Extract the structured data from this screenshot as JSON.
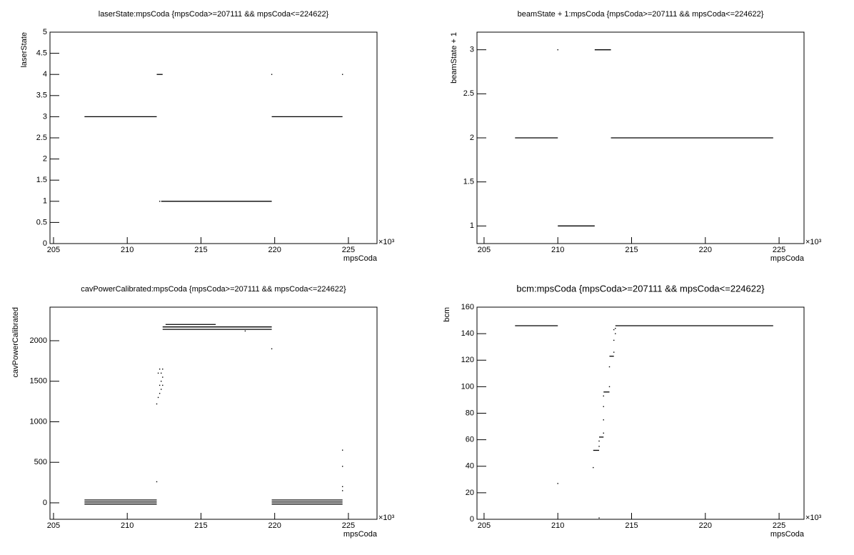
{
  "chart_data": [
    {
      "type": "scatter",
      "title": "laserState:mpsCoda {mpsCoda>=207111 && mpsCoda<=224622}",
      "x_label": "mpsCoda",
      "y_label": "laserState",
      "x_exponent": "×10³",
      "xlim": [
        204.76,
        226.94
      ],
      "xticks": [
        205,
        210,
        215,
        220,
        225
      ],
      "ylim": [
        0,
        5
      ],
      "yticks": [
        0,
        0.5,
        1,
        1.5,
        2,
        2.5,
        3,
        3.5,
        4,
        4.5,
        5
      ],
      "runs": [
        {
          "x": [
            207.1,
            212.0
          ],
          "y": 3
        },
        {
          "x": [
            212.0,
            212.4
          ],
          "y": 4
        },
        {
          "x": [
            212.3,
            219.8
          ],
          "y": 1
        },
        {
          "x": [
            219.8,
            224.6
          ],
          "y": 3
        }
      ],
      "points": {
        "x": [
          212.2,
          219.8,
          224.6
        ],
        "y": [
          1,
          4,
          4
        ]
      }
    },
    {
      "type": "scatter",
      "title": "beamState + 1:mpsCoda {mpsCoda>=207111 && mpsCoda<=224622}",
      "x_label": "mpsCoda",
      "y_label": "beamState + 1",
      "x_exponent": "×10³",
      "xlim": [
        204.52,
        226.69
      ],
      "xticks": [
        205,
        210,
        215,
        220,
        225
      ],
      "ylim": [
        0.8,
        3.2
      ],
      "yticks": [
        1,
        1.5,
        2,
        2.5,
        3
      ],
      "runs": [
        {
          "x": [
            207.1,
            210.0
          ],
          "y": 2
        },
        {
          "x": [
            210.0,
            212.5
          ],
          "y": 1
        },
        {
          "x": [
            212.5,
            213.6
          ],
          "y": 3
        },
        {
          "x": [
            213.6,
            224.6
          ],
          "y": 2
        }
      ],
      "points": {
        "x": [
          210.0
        ],
        "y": [
          3
        ]
      }
    },
    {
      "type": "scatter",
      "title": "cavPowerCalibrated:mpsCoda {mpsCoda>=207111 && mpsCoda<=224622}",
      "x_label": "mpsCoda",
      "y_label": "cavPowerCalibrated",
      "x_exponent": "×10³",
      "xlim": [
        204.76,
        226.94
      ],
      "xticks": [
        205,
        210,
        215,
        220,
        225
      ],
      "ylim": [
        -203,
        2414
      ],
      "yticks": [
        0,
        500,
        1000,
        1500,
        2000
      ],
      "runs": [
        {
          "x": [
            207.1,
            212.0
          ],
          "y": 35
        },
        {
          "x": [
            207.1,
            212.0
          ],
          "y": 10
        },
        {
          "x": [
            207.1,
            212.0
          ],
          "y": -15
        },
        {
          "x": [
            212.4,
            219.8
          ],
          "y": 2140
        },
        {
          "x": [
            212.4,
            219.8
          ],
          "y": 2170
        },
        {
          "x": [
            212.6,
            216.0
          ],
          "y": 2200
        },
        {
          "x": [
            219.8,
            224.6
          ],
          "y": 35
        },
        {
          "x": [
            219.8,
            224.6
          ],
          "y": 10
        },
        {
          "x": [
            219.8,
            224.6
          ],
          "y": -15
        }
      ],
      "points": {
        "x": [
          212.0,
          212.1,
          212.1,
          212.2,
          212.2,
          212.2,
          212.3,
          212.3,
          212.3,
          212.4,
          212.4,
          212.4,
          212.0,
          219.8,
          218.0,
          224.6,
          224.6,
          224.6,
          224.6
        ],
        "y": [
          1220,
          1300,
          1600,
          1350,
          1450,
          1650,
          1400,
          1500,
          1600,
          1450,
          1550,
          1650,
          260,
          1900,
          2120,
          650,
          450,
          200,
          150
        ]
      }
    },
    {
      "type": "scatter",
      "title": "bcm:mpsCoda {mpsCoda>=207111 && mpsCoda<=224622}",
      "x_label": "mpsCoda",
      "y_label": "bcm",
      "x_exponent": "×10³",
      "xlim": [
        204.52,
        226.69
      ],
      "xticks": [
        205,
        210,
        215,
        220,
        225
      ],
      "ylim": [
        0,
        160
      ],
      "yticks": [
        0,
        20,
        40,
        60,
        80,
        100,
        120,
        140,
        160
      ],
      "runs": [
        {
          "x": [
            207.1,
            210.0
          ],
          "y": 146
        },
        {
          "x": [
            213.9,
            224.6
          ],
          "y": 146
        },
        {
          "x": [
            212.4,
            212.8
          ],
          "y": 52
        },
        {
          "x": [
            212.8,
            213.1
          ],
          "y": 62
        },
        {
          "x": [
            213.1,
            213.5
          ],
          "y": 96
        },
        {
          "x": [
            213.5,
            213.8
          ],
          "y": 123
        }
      ],
      "points": {
        "x": [
          210.0,
          212.4,
          212.8,
          212.8,
          212.8,
          213.1,
          213.1,
          213.1,
          213.1,
          213.5,
          213.5,
          213.8,
          213.8,
          213.8,
          213.9,
          213.9
        ],
        "y": [
          27,
          39,
          1,
          55,
          59,
          65,
          75,
          85,
          93,
          100,
          115,
          126,
          135,
          143,
          140,
          144
        ]
      }
    }
  ]
}
